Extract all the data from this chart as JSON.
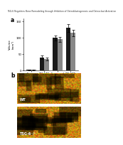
{
  "categories": [
    "Femur\nCTG",
    "BM-CAT",
    "Exosomal",
    "BM-CAT\nplus BM-AML"
  ],
  "black_values": [
    2,
    40,
    100,
    130
  ],
  "gray_values": [
    2,
    35,
    95,
    115
  ],
  "black_errors": [
    1,
    5,
    8,
    12
  ],
  "gray_errors": [
    1,
    4,
    7,
    10
  ],
  "ylabel": "Volume\n(mm³)",
  "bar_color_black": "#1a1a1a",
  "bar_color_gray": "#888888",
  "background_color": "#ffffff",
  "panel_a_label": "a",
  "panel_b_label": "b",
  "wt_label": "WT",
  "tsg_label": "TSG-6⁻/⁻",
  "ylim": [
    0,
    160
  ],
  "yticks": [
    0,
    50,
    100,
    150
  ],
  "title_text": "TSG-6 Regulates Bone Remodeling through Inhibition of Osteoblastogenesis and Osteoclast Activation",
  "pdf_bg": "#1a3a4a",
  "pdf_text": "#ffffff",
  "img_border_color": "#90aa60"
}
